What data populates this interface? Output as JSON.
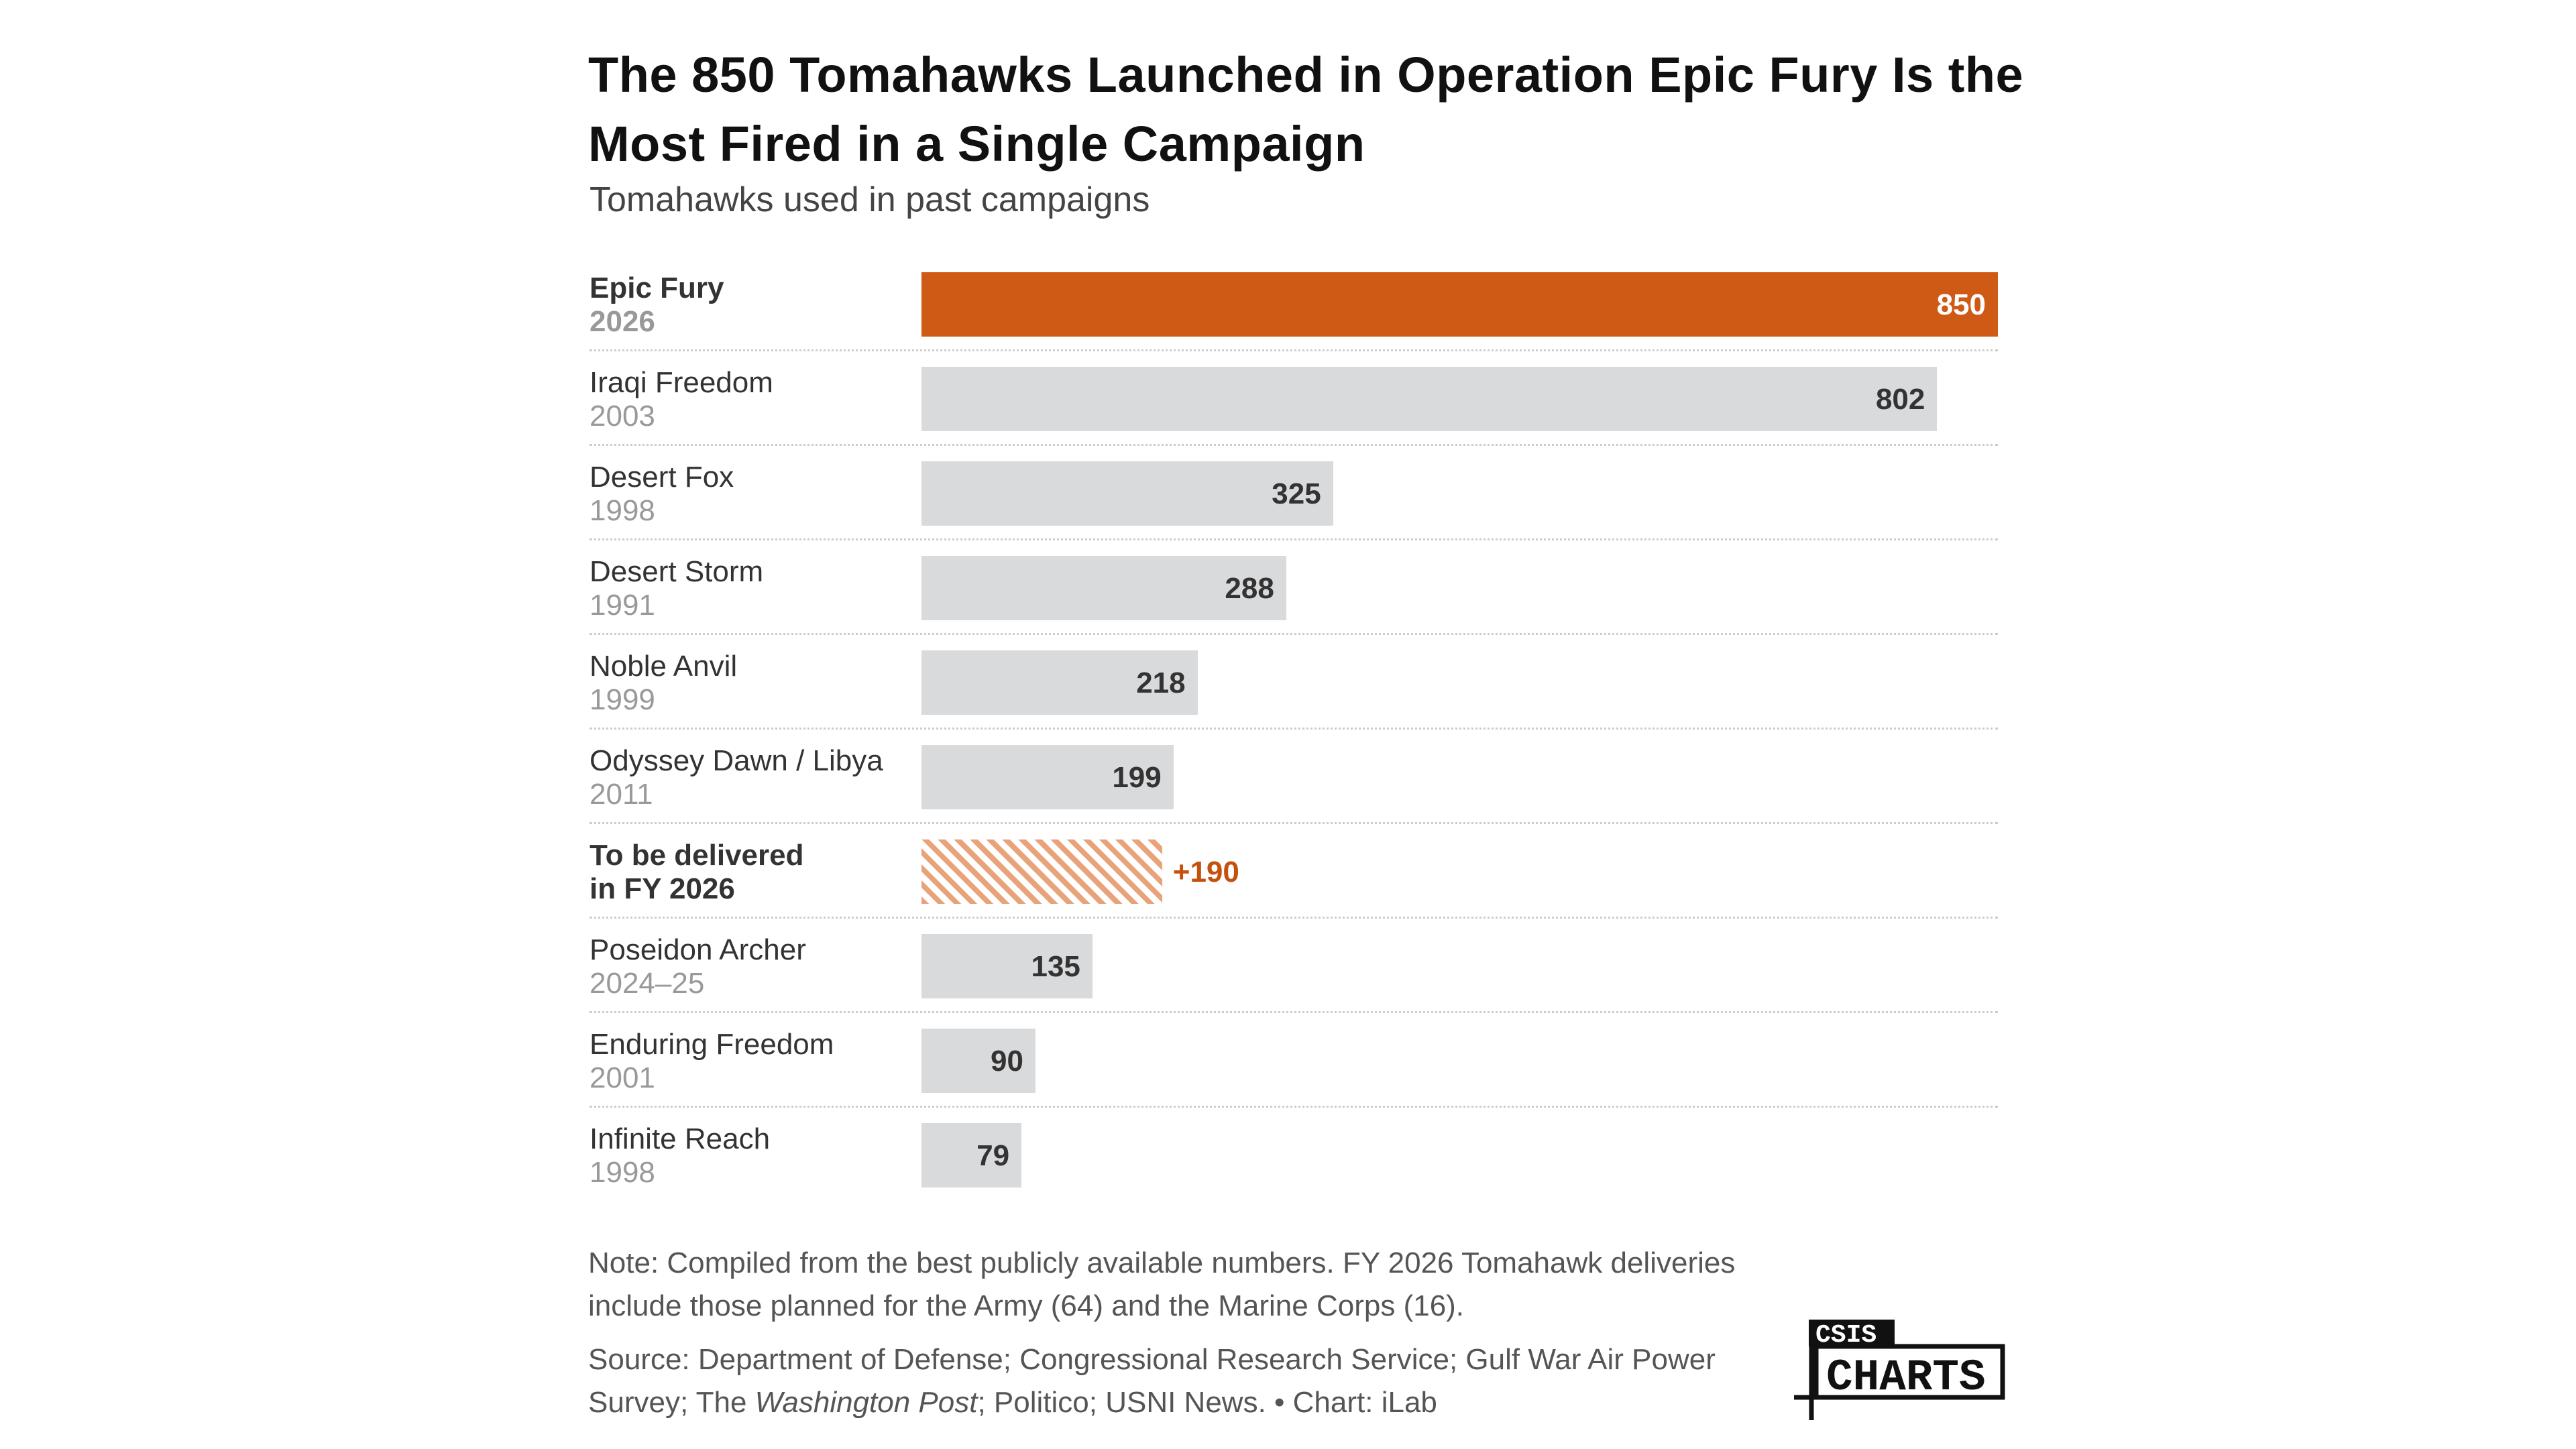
{
  "header": {
    "title": "The 850 Tomahawks Launched in Operation Epic Fury Is the Most Fired in a Single Campaign",
    "subtitle": "Tomahawks used in past campaigns"
  },
  "chart_data": {
    "type": "bar",
    "orientation": "horizontal",
    "title": "The 850 Tomahawks Launched in Operation Epic Fury Is the Most Fired in a Single Campaign",
    "subtitle": "Tomahawks used in past campaigns",
    "xlim": [
      0,
      850
    ],
    "rows": [
      {
        "name": "Epic Fury",
        "year": "2026",
        "value": 850,
        "label": "850",
        "style": "highlight"
      },
      {
        "name": "Iraqi Freedom",
        "year": "2003",
        "value": 802,
        "label": "802",
        "style": "normal"
      },
      {
        "name": "Desert Fox",
        "year": "1998",
        "value": 325,
        "label": "325",
        "style": "normal"
      },
      {
        "name": "Desert Storm",
        "year": "1991",
        "value": 288,
        "label": "288",
        "style": "normal"
      },
      {
        "name": "Noble Anvil",
        "year": "1999",
        "value": 218,
        "label": "218",
        "style": "normal"
      },
      {
        "name": "Odyssey Dawn / Libya",
        "year": "2011",
        "value": 199,
        "label": "199",
        "style": "normal"
      },
      {
        "name": "To be delivered",
        "year": "in FY 2026",
        "value": 190,
        "label": "+190",
        "style": "hatched"
      },
      {
        "name": "Poseidon Archer",
        "year": "2024–25",
        "value": 135,
        "label": "135",
        "style": "normal"
      },
      {
        "name": "Enduring Freedom",
        "year": "2001",
        "value": 90,
        "label": "90",
        "style": "normal"
      },
      {
        "name": "Infinite Reach",
        "year": "1998",
        "value": 79,
        "label": "79",
        "style": "normal"
      }
    ],
    "colors": {
      "highlight": "#CF5A16",
      "normal": "#D9DADC",
      "hatch": "#E8A37A",
      "delivered_label": "#C4520F"
    }
  },
  "footer": {
    "note": "Note: Compiled from the best publicly available numbers. FY 2026 Tomahawk deliveries include those planned for the Army (64) and the Marine Corps (16).",
    "source_a": "Source: Department of Defense; Congressional Research Service; Gulf War Air Power Survey; The ",
    "source_italic": "Washington Post",
    "source_b": "; Politico; USNI News.  • Chart: iLab",
    "logo_top": "CSIS",
    "logo_bottom": "CHARTS"
  }
}
